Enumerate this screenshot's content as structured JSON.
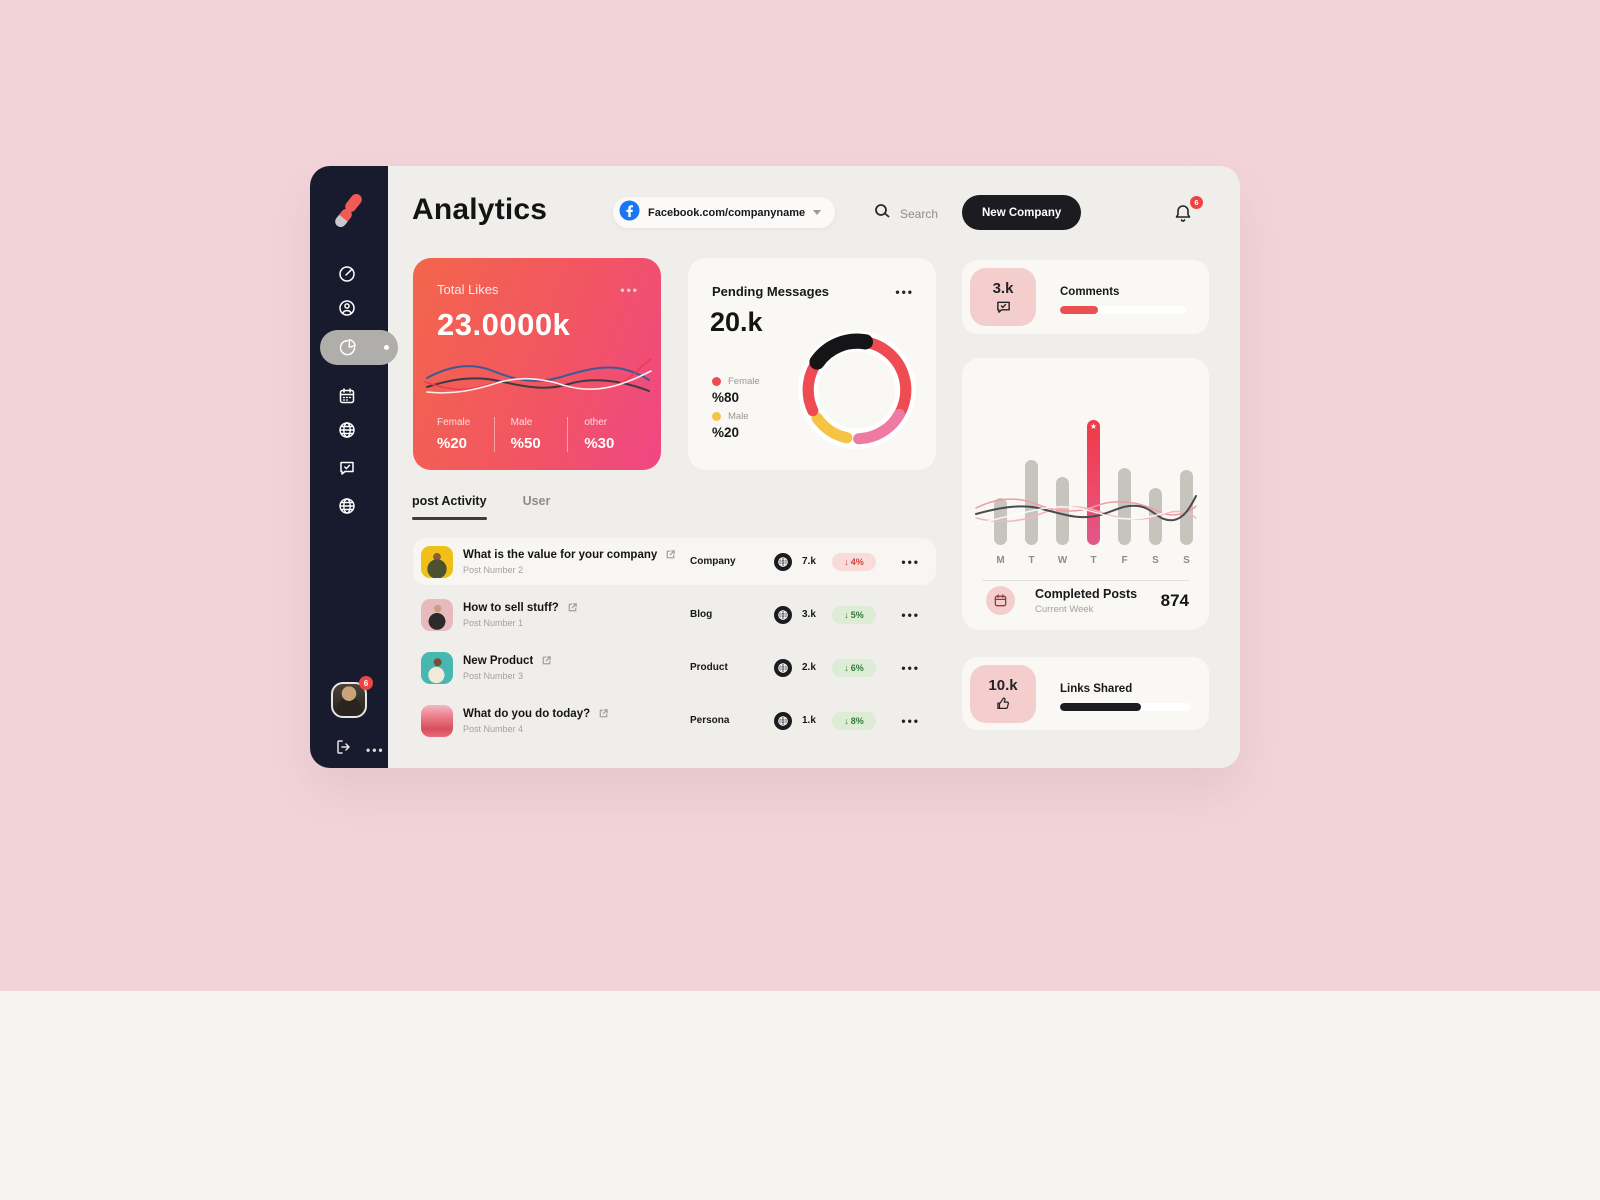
{
  "page": {
    "title": "Analytics"
  },
  "header": {
    "company_selector": "Facebook.com/companyname",
    "search_label": "Search",
    "new_company_label": "New Company",
    "notification_count": "6"
  },
  "sidebar": {
    "items": [
      "dashboard",
      "profile",
      "pie-analytics",
      "calendar",
      "globe",
      "messages",
      "web"
    ],
    "active_item": "pie-analytics",
    "avatar_badge": "6"
  },
  "cards": {
    "total_likes": {
      "title": "Total Likes",
      "value": "23.0000k",
      "stats": [
        {
          "label": "Female",
          "value": "%20"
        },
        {
          "label": "Male",
          "value": "%50"
        },
        {
          "label": "other",
          "value": "%30"
        }
      ]
    },
    "pending_messages": {
      "title": "Pending Messages",
      "value": "20.k",
      "legend": [
        {
          "label": "Female",
          "value": "%80",
          "color": "#ee4b52"
        },
        {
          "label": "Male",
          "value": "%20",
          "color": "#f5c445"
        }
      ]
    },
    "comments": {
      "value": "3.k",
      "label": "Comments",
      "progress": 30
    },
    "weekly_chart": {
      "type": "bar",
      "days": [
        "M",
        "T",
        "W",
        "T",
        "F",
        "S",
        "S"
      ],
      "values": [
        47,
        85,
        68,
        125,
        77,
        57,
        75
      ],
      "highlight_index": 3,
      "footer": {
        "title": "Completed Posts",
        "subtitle": "Current Week",
        "value": "874"
      }
    },
    "links_shared": {
      "value": "10.k",
      "label": "Links Shared",
      "progress": 62
    }
  },
  "tabs": {
    "activity": "post Activity",
    "user": "User"
  },
  "posts": [
    {
      "title": "What is the value for your company",
      "subtitle": "Post Number 2",
      "category": "Company",
      "count": "7.k",
      "direction_glyph": "↓",
      "change": "4%",
      "tone": "red",
      "highlight": true
    },
    {
      "title": "How to sell stuff?",
      "subtitle": "Post Number 1",
      "category": "Blog",
      "count": "3.k",
      "direction_glyph": "↓",
      "change": "5%",
      "tone": "green",
      "highlight": false
    },
    {
      "title": "New Product",
      "subtitle": "Post Number 3",
      "category": "Product",
      "count": "2.k",
      "direction_glyph": "↓",
      "change": "6%",
      "tone": "green",
      "highlight": false
    },
    {
      "title": "What do you do today?",
      "subtitle": "Post Number 4",
      "category": "Persona",
      "count": "1.k",
      "direction_glyph": "↓",
      "change": "8%",
      "tone": "green",
      "highlight": false
    }
  ],
  "colors": {
    "accent_red": "#ee4b52",
    "pink_tile": "#f3cecd",
    "sidebar_bg": "#181b2d",
    "dark_button": "#1c1c20",
    "page_bg": "#f2d4d8",
    "panel_bg": "#f0eeea",
    "yellow": "#f5c445",
    "donut_pink": "#ef7ba5"
  }
}
